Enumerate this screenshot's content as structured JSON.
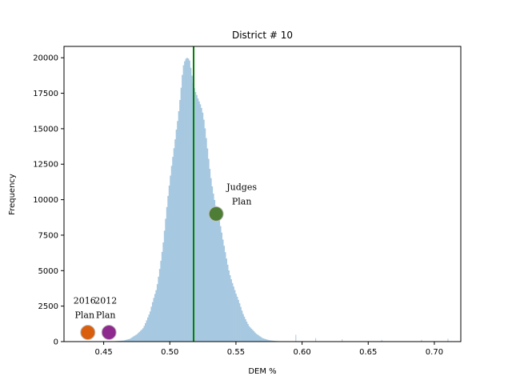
{
  "chart_data": {
    "type": "bar",
    "title": "District # 10",
    "xlabel": "DEM %",
    "ylabel": "Frequency",
    "xlim": [
      0.42,
      0.72
    ],
    "ylim": [
      0,
      20800
    ],
    "xticks": [
      0.45,
      0.5,
      0.55,
      0.6,
      0.65,
      0.7
    ],
    "xtick_labels": [
      "0.45",
      "0.50",
      "0.55",
      "0.60",
      "0.65",
      "0.70"
    ],
    "yticks": [
      0,
      2500,
      5000,
      7500,
      10000,
      12500,
      15000,
      17500,
      20000
    ],
    "ytick_labels": [
      "0",
      "2500",
      "5000",
      "7500",
      "10000",
      "12500",
      "15000",
      "17500",
      "20000"
    ],
    "histogram": {
      "color": "#a6c8e0",
      "points": [
        [
          0.455,
          0
        ],
        [
          0.465,
          80
        ],
        [
          0.47,
          200
        ],
        [
          0.475,
          500
        ],
        [
          0.48,
          1000
        ],
        [
          0.485,
          2000
        ],
        [
          0.49,
          3800
        ],
        [
          0.495,
          7000
        ],
        [
          0.5,
          11000
        ],
        [
          0.505,
          15500
        ],
        [
          0.51,
          19000
        ],
        [
          0.515,
          19600
        ],
        [
          0.52,
          18000
        ],
        [
          0.525,
          15500
        ],
        [
          0.53,
          12500
        ],
        [
          0.535,
          9500
        ],
        [
          0.54,
          7000
        ],
        [
          0.545,
          5000
        ],
        [
          0.55,
          3300
        ],
        [
          0.555,
          2000
        ],
        [
          0.56,
          1100
        ],
        [
          0.565,
          550
        ],
        [
          0.57,
          250
        ],
        [
          0.575,
          100
        ],
        [
          0.58,
          40
        ],
        [
          0.59,
          0
        ]
      ]
    },
    "vline": {
      "x": 0.518,
      "color": "#008000"
    },
    "markers": [
      {
        "name": "Judges Plan",
        "label_lines": [
          "Judges",
          "Plan"
        ],
        "x": 0.535,
        "y": 9000,
        "color": "#4e7d35"
      },
      {
        "name": "2016 Plan",
        "label_lines": [
          "2016",
          "Plan"
        ],
        "x": 0.438,
        "y": 650,
        "color": "#d95f0e"
      },
      {
        "name": "2012 Plan",
        "label_lines": [
          "2012",
          "Plan"
        ],
        "x": 0.454,
        "y": 650,
        "color": "#8e2a8e"
      }
    ],
    "grid": false,
    "legend": "none"
  }
}
